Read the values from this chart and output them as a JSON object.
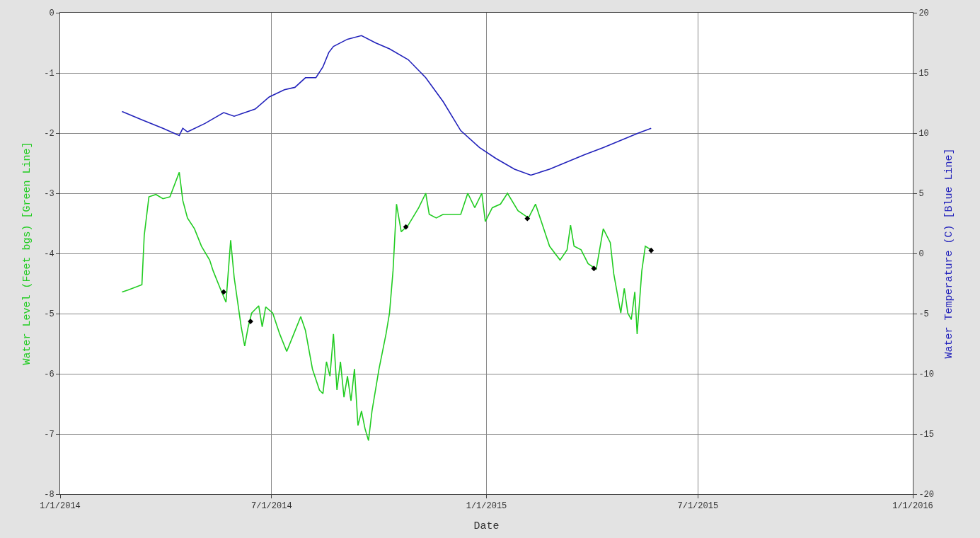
{
  "chart_data": {
    "type": "line",
    "xlabel": "Date",
    "ylabel": "Water Level (Feet bgs) [Green Line]",
    "y2label": "Water Temperature (C) [Blue Line]",
    "xlim": [
      "2014-01-01",
      "2016-01-01"
    ],
    "xticks": [
      {
        "value": "2014-01-01",
        "label": "1/1/2014"
      },
      {
        "value": "2014-07-01",
        "label": "7/1/2014"
      },
      {
        "value": "2015-01-01",
        "label": "1/1/2015"
      },
      {
        "value": "2015-07-01",
        "label": "7/1/2015"
      },
      {
        "value": "2016-01-01",
        "label": "1/1/2016"
      }
    ],
    "ylim": [
      -8,
      0
    ],
    "yticks": [
      -8,
      -7,
      -6,
      -5,
      -4,
      -3,
      -2,
      -1,
      0
    ],
    "y2lim": [
      -20,
      20
    ],
    "y2ticks": [
      -20,
      -15,
      -10,
      -5,
      0,
      5,
      10,
      15,
      20
    ],
    "grid": true,
    "marker": "none",
    "line_style": "solid",
    "series": [
      {
        "color": "#22cc22",
        "x": [
          "2014-02-23",
          "2014-02-28",
          "2014-03-12",
          "2014-03-14",
          "2014-03-18",
          "2014-03-24",
          "2014-03-30",
          "2014-04-05",
          "2014-04-13",
          "2014-04-16",
          "2014-04-20",
          "2014-04-26",
          "2014-05-02",
          "2014-05-09",
          "2014-05-12",
          "2014-05-18",
          "2014-05-23",
          "2014-05-27",
          "2014-05-30",
          "2014-06-05",
          "2014-06-08",
          "2014-06-11",
          "2014-06-14",
          "2014-06-20",
          "2014-06-23",
          "2014-06-26",
          "2014-07-02",
          "2014-07-08",
          "2014-07-14",
          "2014-07-20",
          "2014-07-26",
          "2014-07-30",
          "2014-08-05",
          "2014-08-11",
          "2014-08-14",
          "2014-08-17",
          "2014-08-20",
          "2014-08-23",
          "2014-08-26",
          "2014-08-29",
          "2014-09-01",
          "2014-09-04",
          "2014-09-07",
          "2014-09-10",
          "2014-09-13",
          "2014-09-16",
          "2014-09-19",
          "2014-09-22",
          "2014-09-25",
          "2014-10-01",
          "2014-10-07",
          "2014-10-10",
          "2014-10-13",
          "2014-10-16",
          "2014-10-20",
          "2014-10-26",
          "2014-11-04",
          "2014-11-10",
          "2014-11-13",
          "2014-11-19",
          "2014-11-25",
          "2014-12-04",
          "2014-12-10",
          "2014-12-16",
          "2014-12-22",
          "2014-12-28",
          "2014-12-31",
          "2015-01-06",
          "2015-01-13",
          "2015-01-19",
          "2015-01-28",
          "2015-02-06",
          "2015-02-12",
          "2015-02-18",
          "2015-02-24",
          "2015-03-05",
          "2015-03-11",
          "2015-03-14",
          "2015-03-17",
          "2015-03-23",
          "2015-03-29",
          "2015-04-05",
          "2015-04-11",
          "2015-04-17",
          "2015-04-20",
          "2015-04-26",
          "2015-04-29",
          "2015-05-02",
          "2015-05-05",
          "2015-05-08",
          "2015-05-10",
          "2015-05-14",
          "2015-05-17",
          "2015-05-22"
        ],
        "values": [
          -4.64,
          -4.61,
          -4.52,
          -3.7,
          -3.06,
          -3.02,
          -3.09,
          -3.06,
          -2.65,
          -3.12,
          -3.41,
          -3.59,
          -3.88,
          -4.11,
          -4.29,
          -4.58,
          -4.81,
          -3.78,
          -4.4,
          -5.22,
          -5.54,
          -5.22,
          -4.99,
          -4.87,
          -5.22,
          -4.89,
          -4.99,
          -5.34,
          -5.63,
          -5.34,
          -5.05,
          -5.28,
          -5.92,
          -6.27,
          -6.33,
          -5.8,
          -6.04,
          -5.34,
          -6.27,
          -5.8,
          -6.39,
          -6.04,
          -6.45,
          -5.92,
          -6.86,
          -6.62,
          -6.91,
          -7.11,
          -6.62,
          -5.92,
          -5.34,
          -4.99,
          -4.29,
          -3.18,
          -3.64,
          -3.53,
          -3.24,
          -3.0,
          -3.35,
          -3.41,
          -3.35,
          -3.35,
          -3.35,
          -3.0,
          -3.24,
          -3.0,
          -3.47,
          -3.24,
          -3.18,
          -3.0,
          -3.29,
          -3.41,
          -3.18,
          -3.53,
          -3.88,
          -4.11,
          -3.94,
          -3.53,
          -3.88,
          -3.94,
          -4.17,
          -4.26,
          -3.59,
          -3.82,
          -4.34,
          -4.99,
          -4.58,
          -4.99,
          -5.1,
          -4.64,
          -5.34,
          -4.29,
          -3.88,
          -3.94
        ]
      },
      {
        "color": "#2222bb",
        "axis": "y2",
        "x": [
          "2014-02-23",
          "2014-03-12",
          "2014-03-30",
          "2014-04-13",
          "2014-04-16",
          "2014-04-20",
          "2014-05-05",
          "2014-05-21",
          "2014-05-30",
          "2014-06-17",
          "2014-06-29",
          "2014-07-12",
          "2014-07-21",
          "2014-07-30",
          "2014-08-08",
          "2014-08-14",
          "2014-08-19",
          "2014-08-23",
          "2014-09-04",
          "2014-09-16",
          "2014-09-28",
          "2014-10-10",
          "2014-10-26",
          "2014-11-10",
          "2014-11-25",
          "2014-12-10",
          "2014-12-26",
          "2015-01-09",
          "2015-01-25",
          "2015-02-08",
          "2015-02-24",
          "2015-03-11",
          "2015-03-26",
          "2015-04-11",
          "2015-04-26",
          "2015-05-11",
          "2015-05-22"
        ],
        "values": [
          11.8,
          11.1,
          10.4,
          9.8,
          10.4,
          10.1,
          10.8,
          11.7,
          11.4,
          12.0,
          13.0,
          13.6,
          13.8,
          14.6,
          14.6,
          15.5,
          16.7,
          17.2,
          17.8,
          18.1,
          17.5,
          17.0,
          16.1,
          14.6,
          12.6,
          10.2,
          8.8,
          7.9,
          7.0,
          6.5,
          7.0,
          7.6,
          8.2,
          8.8,
          9.4,
          10.0,
          10.4
        ]
      },
      {
        "type": "scatter",
        "color": "#000000",
        "marker": "diamond",
        "x": [
          "2014-05-21",
          "2014-06-13",
          "2014-10-24",
          "2015-02-05",
          "2015-04-03",
          "2015-05-22"
        ],
        "values": [
          -4.64,
          -5.13,
          -3.56,
          -3.42,
          -4.25,
          -3.95
        ]
      }
    ]
  }
}
